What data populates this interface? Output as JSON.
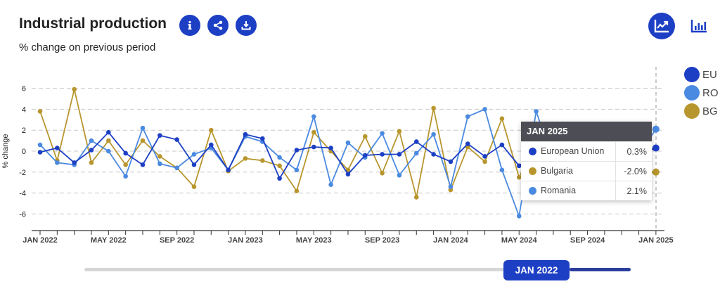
{
  "header": {
    "title": "Industrial production",
    "subtitle": "% change on previous period"
  },
  "icons": {
    "info": "info-icon",
    "share": "share-icon",
    "download": "download-icon",
    "line_view": "line-chart-icon",
    "bar_view": "bar-chart-icon"
  },
  "colors": {
    "EU": "#1d3fc4",
    "RO": "#4a8ae0",
    "BG": "#b8962e",
    "accent": "#1d3fc4"
  },
  "tooltip": {
    "title": "JAN 2025",
    "rows": [
      {
        "name": "European Union",
        "value": "0.3%",
        "color": "#1d3fc4"
      },
      {
        "name": "Bulgaria",
        "value": "-2.0%",
        "color": "#b8962e"
      },
      {
        "name": "Romania",
        "value": "2.1%",
        "color": "#4a8ae0"
      }
    ]
  },
  "slider": {
    "label": "JAN 2022",
    "position": 0.88
  },
  "chart_data": {
    "type": "line",
    "title": "Industrial production",
    "subtitle": "% change on previous period",
    "xlabel": "",
    "ylabel": "% change",
    "ylim": [
      -7.5,
      7
    ],
    "yticks": [
      -6,
      -4,
      -2,
      0,
      2,
      4,
      6
    ],
    "grid": true,
    "legend_placement": "right",
    "x_start": "2022-01",
    "x_count": 37,
    "xtick_labels": [
      "JAN 2022",
      "MAY 2022",
      "SEP 2022",
      "JAN 2023",
      "MAY 2023",
      "SEP 2023",
      "JAN 2024",
      "MAY 2024",
      "SEP 2024",
      "JAN 2025"
    ],
    "series": [
      {
        "name": "EU",
        "color": "#1d3fc4",
        "values": [
          -0.1,
          0.3,
          -1.1,
          0.1,
          1.8,
          -0.2,
          -1.3,
          1.5,
          1.1,
          -1.3,
          0.6,
          -1.8,
          1.6,
          1.2,
          -2.6,
          0.1,
          0.4,
          0.3,
          -2.2,
          -0.4,
          -0.3,
          -0.3,
          0.9,
          -0.3,
          -1.0,
          0.7,
          -0.5,
          0.6,
          -1.4,
          -0.2,
          0.1,
          -0.4,
          0.2,
          -0.5,
          0.3,
          -0.2,
          0.3
        ]
      },
      {
        "name": "RO",
        "color": "#4a8ae0",
        "values": [
          0.6,
          -1.1,
          -1.3,
          1.0,
          0.0,
          -2.4,
          2.2,
          -1.2,
          -1.6,
          -0.3,
          0.3,
          -1.8,
          1.4,
          0.9,
          -0.6,
          -1.8,
          3.3,
          -3.2,
          0.8,
          -0.6,
          1.7,
          -2.3,
          -0.2,
          1.6,
          -3.4,
          3.3,
          4.0,
          -1.8,
          -6.2,
          3.8,
          -1.0,
          0.5,
          -0.8,
          1.2,
          -0.6,
          -0.3,
          2.1
        ]
      },
      {
        "name": "BG",
        "color": "#b8962e",
        "values": [
          3.8,
          -0.9,
          5.9,
          -1.1,
          1.0,
          -1.3,
          1.0,
          -0.5,
          -1.6,
          -3.4,
          2.0,
          -1.9,
          -0.7,
          -0.9,
          -1.4,
          -3.8,
          1.8,
          0.0,
          -1.8,
          1.4,
          -2.1,
          1.9,
          -4.4,
          4.1,
          -3.7,
          0.4,
          -1.0,
          3.1,
          -2.5,
          0.8,
          -1.5,
          1.0,
          -0.8,
          -2.6,
          0.5,
          -2.2,
          -2.0
        ]
      }
    ]
  }
}
